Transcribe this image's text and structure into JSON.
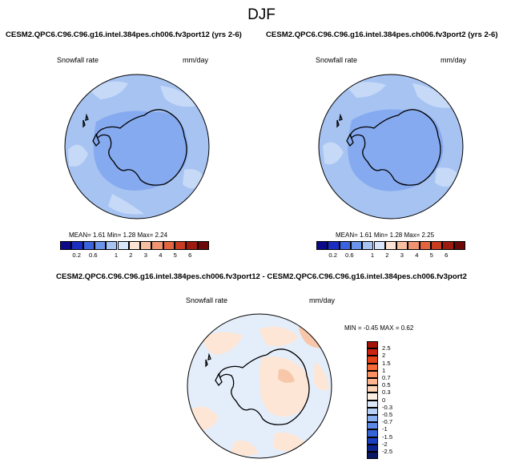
{
  "header": {
    "season": "DJF"
  },
  "panels": [
    {
      "title": "CESM2.QPC6.C96.C96.g16.intel.384pes.ch006.fv3port12 (yrs 2-6)",
      "variable": "Snowfall rate",
      "units": "mm/day",
      "stats": {
        "mean_label": "MEAN=",
        "mean": "1.61",
        "min_label": "Min=",
        "min": "1.28",
        "max_label": "Max=",
        "max": "2.24"
      }
    },
    {
      "title": "CESM2.QPC6.C96.C96.g16.intel.384pes.ch006.fv3port2 (yrs 2-6)",
      "variable": "Snowfall rate",
      "units": "mm/day",
      "stats": {
        "mean_label": "MEAN=",
        "mean": "1.61",
        "min_label": "Min=",
        "min": "1.28",
        "max_label": "Max=",
        "max": "2.25"
      }
    }
  ],
  "diff_panel": {
    "title": "CESM2.QPC6.C96.C96.g16.intel.384pes.ch006.fv3port12 - CESM2.QPC6.C96.C96.g16.intel.384pes.ch006.fv3port2",
    "variable": "Snowfall rate",
    "units": "mm/day",
    "stats": {
      "min_label": "MIN =",
      "min": "-0.45",
      "max_label": "MAX =",
      "max": "0.62"
    }
  },
  "colorbars": {
    "field": {
      "ticks": [
        "0.2",
        "0.6",
        "1",
        "2",
        "3",
        "4",
        "5",
        "6"
      ],
      "colors": [
        "#0a0a8a",
        "#1a2fc2",
        "#3a63dd",
        "#6a93ea",
        "#a6c3f2",
        "#d8e6fb",
        "#fbe2d3",
        "#f6bfa0",
        "#ef9370",
        "#e2653f",
        "#c83c20",
        "#9c1a0e",
        "#6e0707"
      ]
    },
    "diff": {
      "ticks": [
        "2.5",
        "2",
        "1.5",
        "1",
        "0.7",
        "0.5",
        "0.3",
        "0",
        "-0.3",
        "-0.5",
        "-0.7",
        "-1",
        "-1.5",
        "-2",
        "-2.5"
      ],
      "colors": [
        "#a31308",
        "#cc2410",
        "#e6431b",
        "#f56a37",
        "#fb9163",
        "#fdb690",
        "#fdd4b8",
        "#fdf0e2",
        "#dde9fa",
        "#b7d0f6",
        "#89aff0",
        "#5c88e6",
        "#3564d7",
        "#1a3fbf",
        "#0d2590",
        "#081863"
      ]
    }
  },
  "map_colors": {
    "ocean_field": "#a6c3f2",
    "land_field": "#86aaef",
    "light_patch": "#c6d9f7",
    "diff_base": "#e4eefb",
    "diff_warm": "#fde6d6",
    "diff_warmer": "#f8c7aa",
    "coast": "#000000"
  }
}
